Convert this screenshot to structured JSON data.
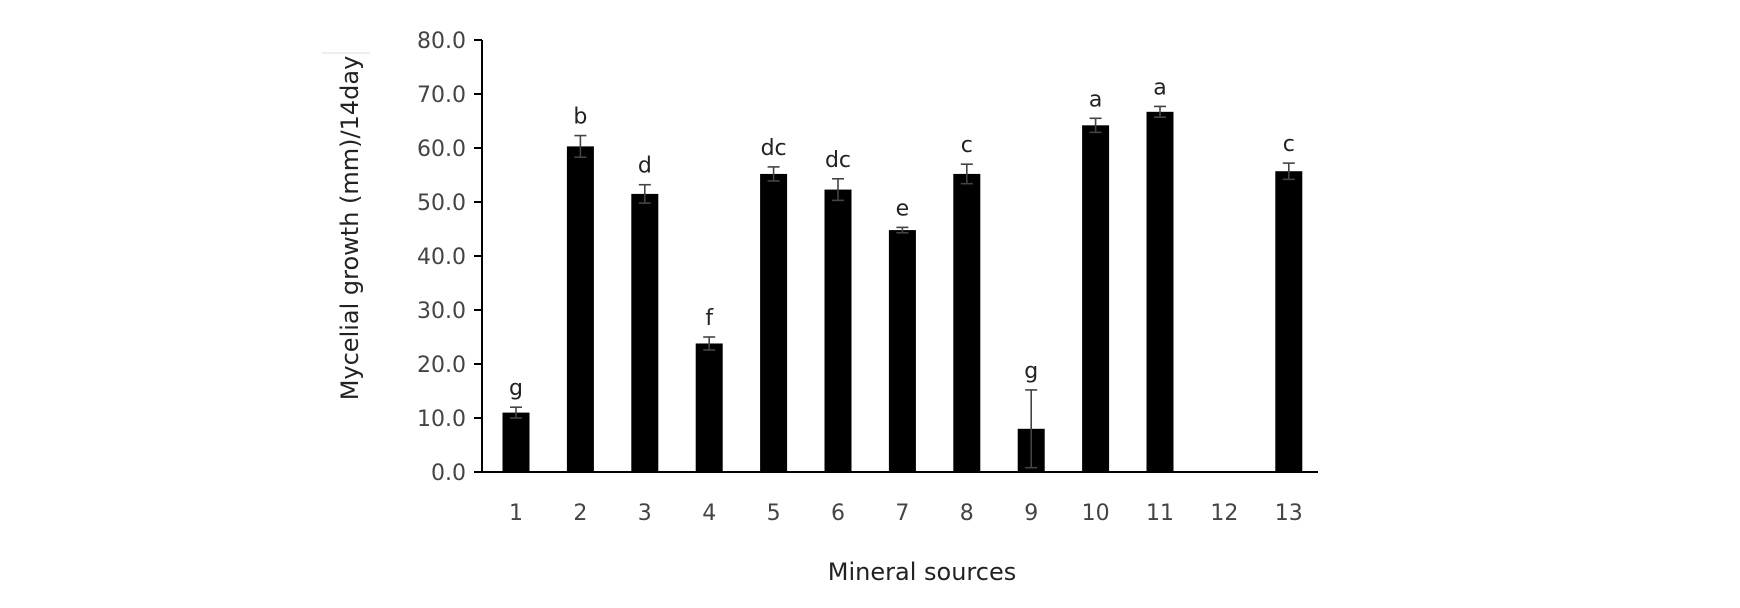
{
  "chart_data": {
    "type": "bar",
    "xlabel": "Mineral sources",
    "ylabel": "Mycelial growth (mm)/14day",
    "ylim": [
      0,
      80
    ],
    "yticks": [
      "0.0",
      "10.0",
      "20.0",
      "30.0",
      "40.0",
      "50.0",
      "60.0",
      "70.0",
      "80.0"
    ],
    "categories": [
      "1",
      "2",
      "3",
      "4",
      "5",
      "6",
      "7",
      "8",
      "9",
      "10",
      "11",
      "12",
      "13"
    ],
    "values": [
      11.0,
      60.3,
      51.5,
      23.8,
      55.2,
      52.3,
      44.8,
      55.2,
      8.0,
      64.2,
      66.7,
      0,
      55.7
    ],
    "errors": [
      1.0,
      2.0,
      1.7,
      1.2,
      1.3,
      2.0,
      0.5,
      1.8,
      7.2,
      1.3,
      1.0,
      0,
      1.5
    ],
    "letters": [
      "g",
      "b",
      "d",
      "f",
      "dc",
      "dc",
      "e",
      "c",
      "g",
      "a",
      "a",
      "",
      "c"
    ],
    "bar_color": "#000000",
    "grid": false,
    "legend": "none"
  }
}
